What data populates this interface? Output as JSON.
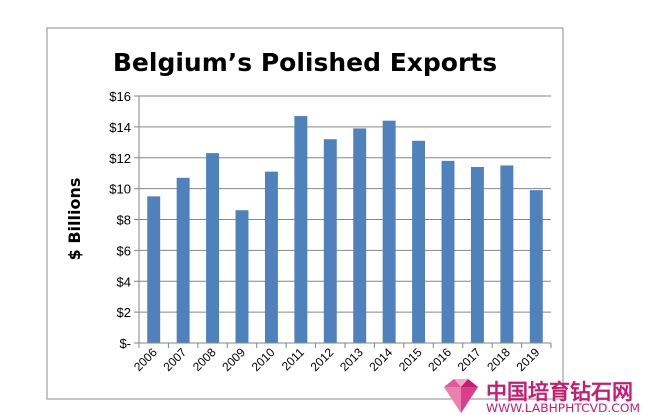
{
  "chart_data": {
    "type": "bar",
    "title": "Belgium’s Polished Exports",
    "ylabel": "$ Billions",
    "xlabel": "",
    "categories": [
      "2006",
      "2007",
      "2008",
      "2009",
      "2010",
      "2011",
      "2012",
      "2013",
      "2014",
      "2015",
      "2016",
      "2017",
      "2018",
      "2019"
    ],
    "values": [
      9.5,
      10.7,
      12.3,
      8.6,
      11.1,
      14.7,
      13.2,
      13.9,
      14.4,
      13.1,
      11.8,
      11.4,
      11.5,
      9.9
    ],
    "ylim": [
      0,
      16
    ],
    "yticks": [
      0,
      2,
      4,
      6,
      8,
      10,
      12,
      14,
      16
    ],
    "ytick_labels": [
      "$-",
      "$2",
      "$4",
      "$6",
      "$8",
      "$10",
      "$12",
      "$14",
      "$16"
    ],
    "grid": true,
    "legend": "none",
    "bar_color": "#4f81bd"
  },
  "watermark": {
    "chinese": "中国培育钻石网",
    "url": "WWW.LABHPHTCVD.COM",
    "color": "#c81c74"
  }
}
